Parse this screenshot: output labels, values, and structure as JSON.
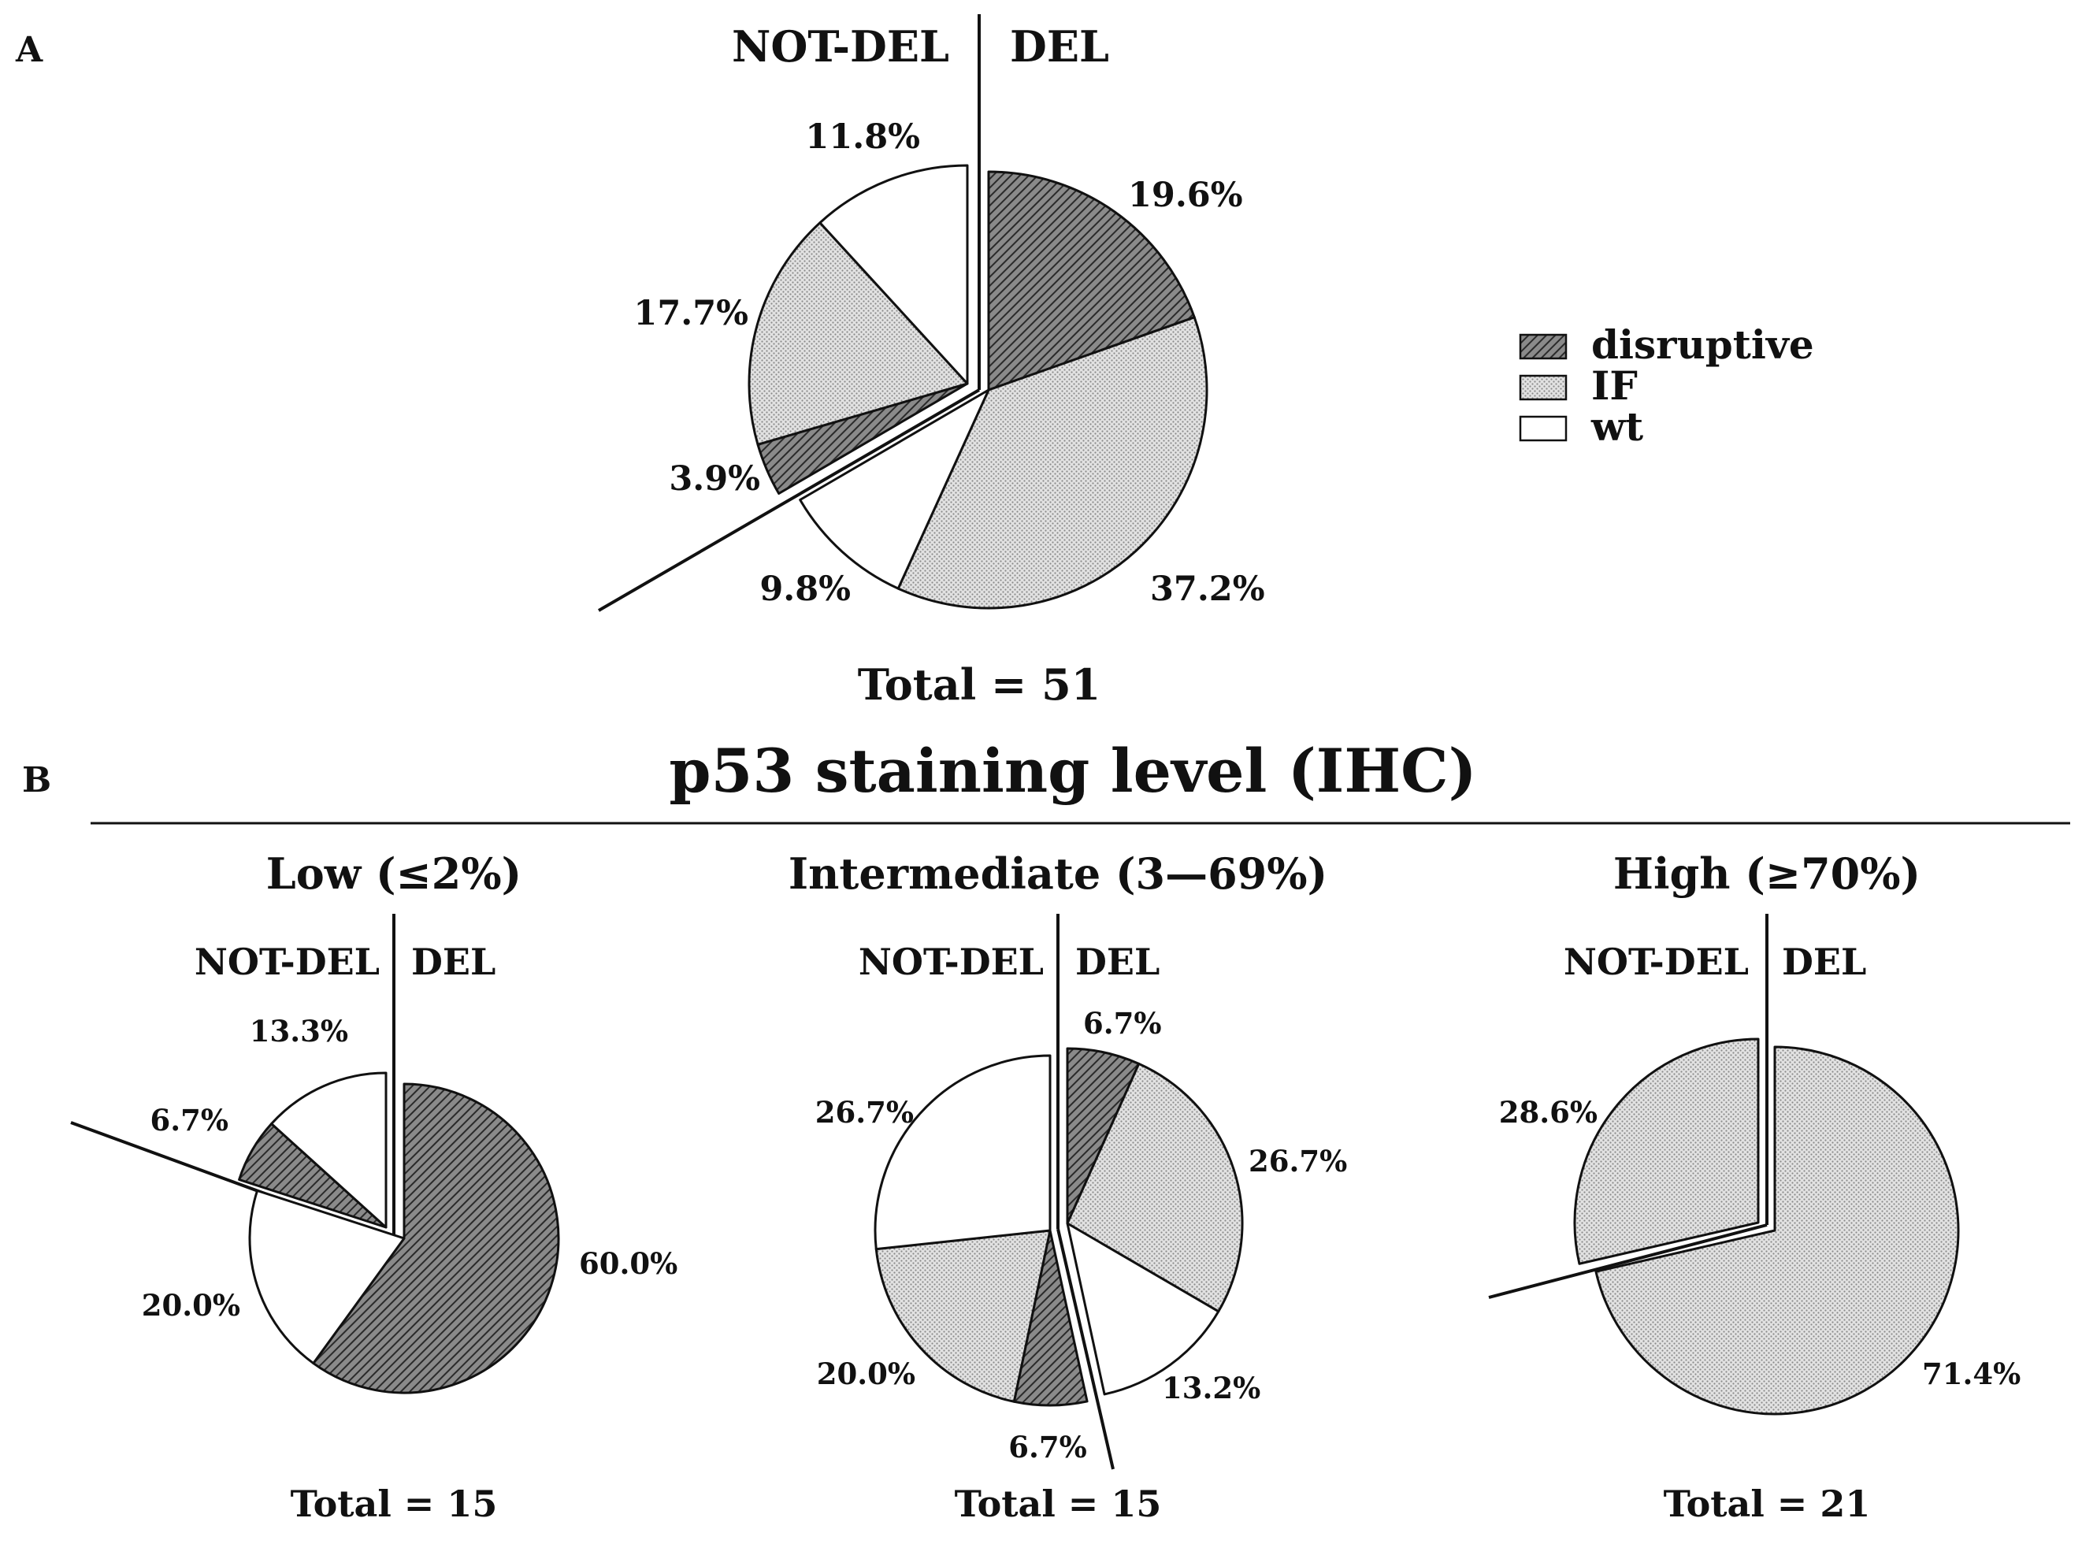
{
  "legend": {
    "items": [
      {
        "key": "disruptive",
        "label": "disruptive",
        "pattern": "hatch"
      },
      {
        "key": "IF",
        "label": "IF",
        "pattern": "dots"
      },
      {
        "key": "wt",
        "label": "wt",
        "pattern": "plain"
      }
    ]
  },
  "panelA": {
    "letter": "A"
  },
  "panelB": {
    "letter": "B",
    "title": "p53 staining level (IHC)"
  },
  "colors": {
    "disruptive": "#5e5e5e",
    "IF": "#d4d4d4",
    "wt": "#ffffff",
    "stroke": "#111111"
  },
  "chart_data": [
    {
      "type": "pie",
      "panel": "A",
      "title": "",
      "left_label": "NOT-DEL",
      "right_label": "DEL",
      "total": "Total = 51",
      "slices": [
        {
          "group": "DEL",
          "category": "disruptive",
          "value": 19.6,
          "label": "19.6%"
        },
        {
          "group": "DEL",
          "category": "IF",
          "value": 37.2,
          "label": "37.2%"
        },
        {
          "group": "DEL",
          "category": "wt",
          "value": 9.8,
          "label": "9.8%"
        },
        {
          "group": "NOT-DEL",
          "category": "disruptive",
          "value": 3.9,
          "label": "3.9%"
        },
        {
          "group": "NOT-DEL",
          "category": "IF",
          "value": 17.7,
          "label": "17.7%"
        },
        {
          "group": "NOT-DEL",
          "category": "wt",
          "value": 11.8,
          "label": "11.8%"
        }
      ]
    },
    {
      "type": "pie",
      "panel": "B",
      "title": "Low (≤2%)",
      "left_label": "NOT-DEL",
      "right_label": "DEL",
      "total": "Total = 15",
      "slices": [
        {
          "group": "DEL",
          "category": "disruptive",
          "value": 60.0,
          "label": "60.0%"
        },
        {
          "group": "DEL",
          "category": "wt",
          "value": 20.0,
          "label": "20.0%"
        },
        {
          "group": "NOT-DEL",
          "category": "disruptive",
          "value": 6.7,
          "label": "6.7%"
        },
        {
          "group": "NOT-DEL",
          "category": "wt",
          "value": 13.3,
          "label": "13.3%"
        }
      ]
    },
    {
      "type": "pie",
      "panel": "B",
      "title": "Intermediate (3—69%)",
      "left_label": "NOT-DEL",
      "right_label": "DEL",
      "total": "Total = 15",
      "slices": [
        {
          "group": "DEL",
          "category": "disruptive",
          "value": 6.7,
          "label": "6.7%"
        },
        {
          "group": "DEL",
          "category": "IF",
          "value": 26.7,
          "label": "26.7%"
        },
        {
          "group": "DEL",
          "category": "wt",
          "value": 13.2,
          "label": "13.2%"
        },
        {
          "group": "NOT-DEL",
          "category": "disruptive",
          "value": 6.7,
          "label": "6.7%"
        },
        {
          "group": "NOT-DEL",
          "category": "IF",
          "value": 20.0,
          "label": "20.0%"
        },
        {
          "group": "NOT-DEL",
          "category": "wt",
          "value": 26.7,
          "label": "26.7%"
        }
      ]
    },
    {
      "type": "pie",
      "panel": "B",
      "title": "High (≥70%)",
      "left_label": "NOT-DEL",
      "right_label": "DEL",
      "total": "Total = 21",
      "slices": [
        {
          "group": "DEL",
          "category": "IF",
          "value": 71.4,
          "label": "71.4%"
        },
        {
          "group": "NOT-DEL",
          "category": "IF",
          "value": 28.6,
          "label": "28.6%"
        }
      ]
    }
  ]
}
